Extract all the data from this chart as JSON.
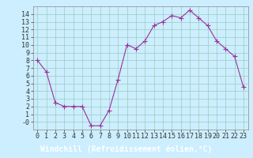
{
  "x": [
    0,
    1,
    2,
    3,
    4,
    5,
    6,
    7,
    8,
    9,
    10,
    11,
    12,
    13,
    14,
    15,
    16,
    17,
    18,
    19,
    20,
    21,
    22,
    23
  ],
  "y": [
    8.0,
    6.5,
    2.5,
    2.0,
    2.0,
    2.0,
    -0.5,
    -0.5,
    1.5,
    5.5,
    10.0,
    9.5,
    10.5,
    12.5,
    13.0,
    13.8,
    13.5,
    14.5,
    13.5,
    12.5,
    10.5,
    9.5,
    8.5,
    4.5
  ],
  "line_color": "#993399",
  "marker": "+",
  "marker_size": 4,
  "bg_color": "#cceeff",
  "grid_color": "#99ccbb",
  "xlabel": "Windchill (Refroidissement éolien,°C)",
  "xlabel_fontsize": 7,
  "ylim": [
    -1,
    15
  ],
  "xlim": [
    -0.5,
    23.5
  ],
  "tick_fontsize": 6,
  "ytick_labels": [
    "-0",
    "1",
    "2",
    "3",
    "4",
    "5",
    "6",
    "7",
    "8",
    "9",
    "10",
    "11",
    "12",
    "13",
    "14"
  ],
  "ytick_positions": [
    0,
    1,
    2,
    3,
    4,
    5,
    6,
    7,
    8,
    9,
    10,
    11,
    12,
    13,
    14
  ],
  "xlabel_bg": "#993399",
  "xlabel_color": "#ffffff"
}
